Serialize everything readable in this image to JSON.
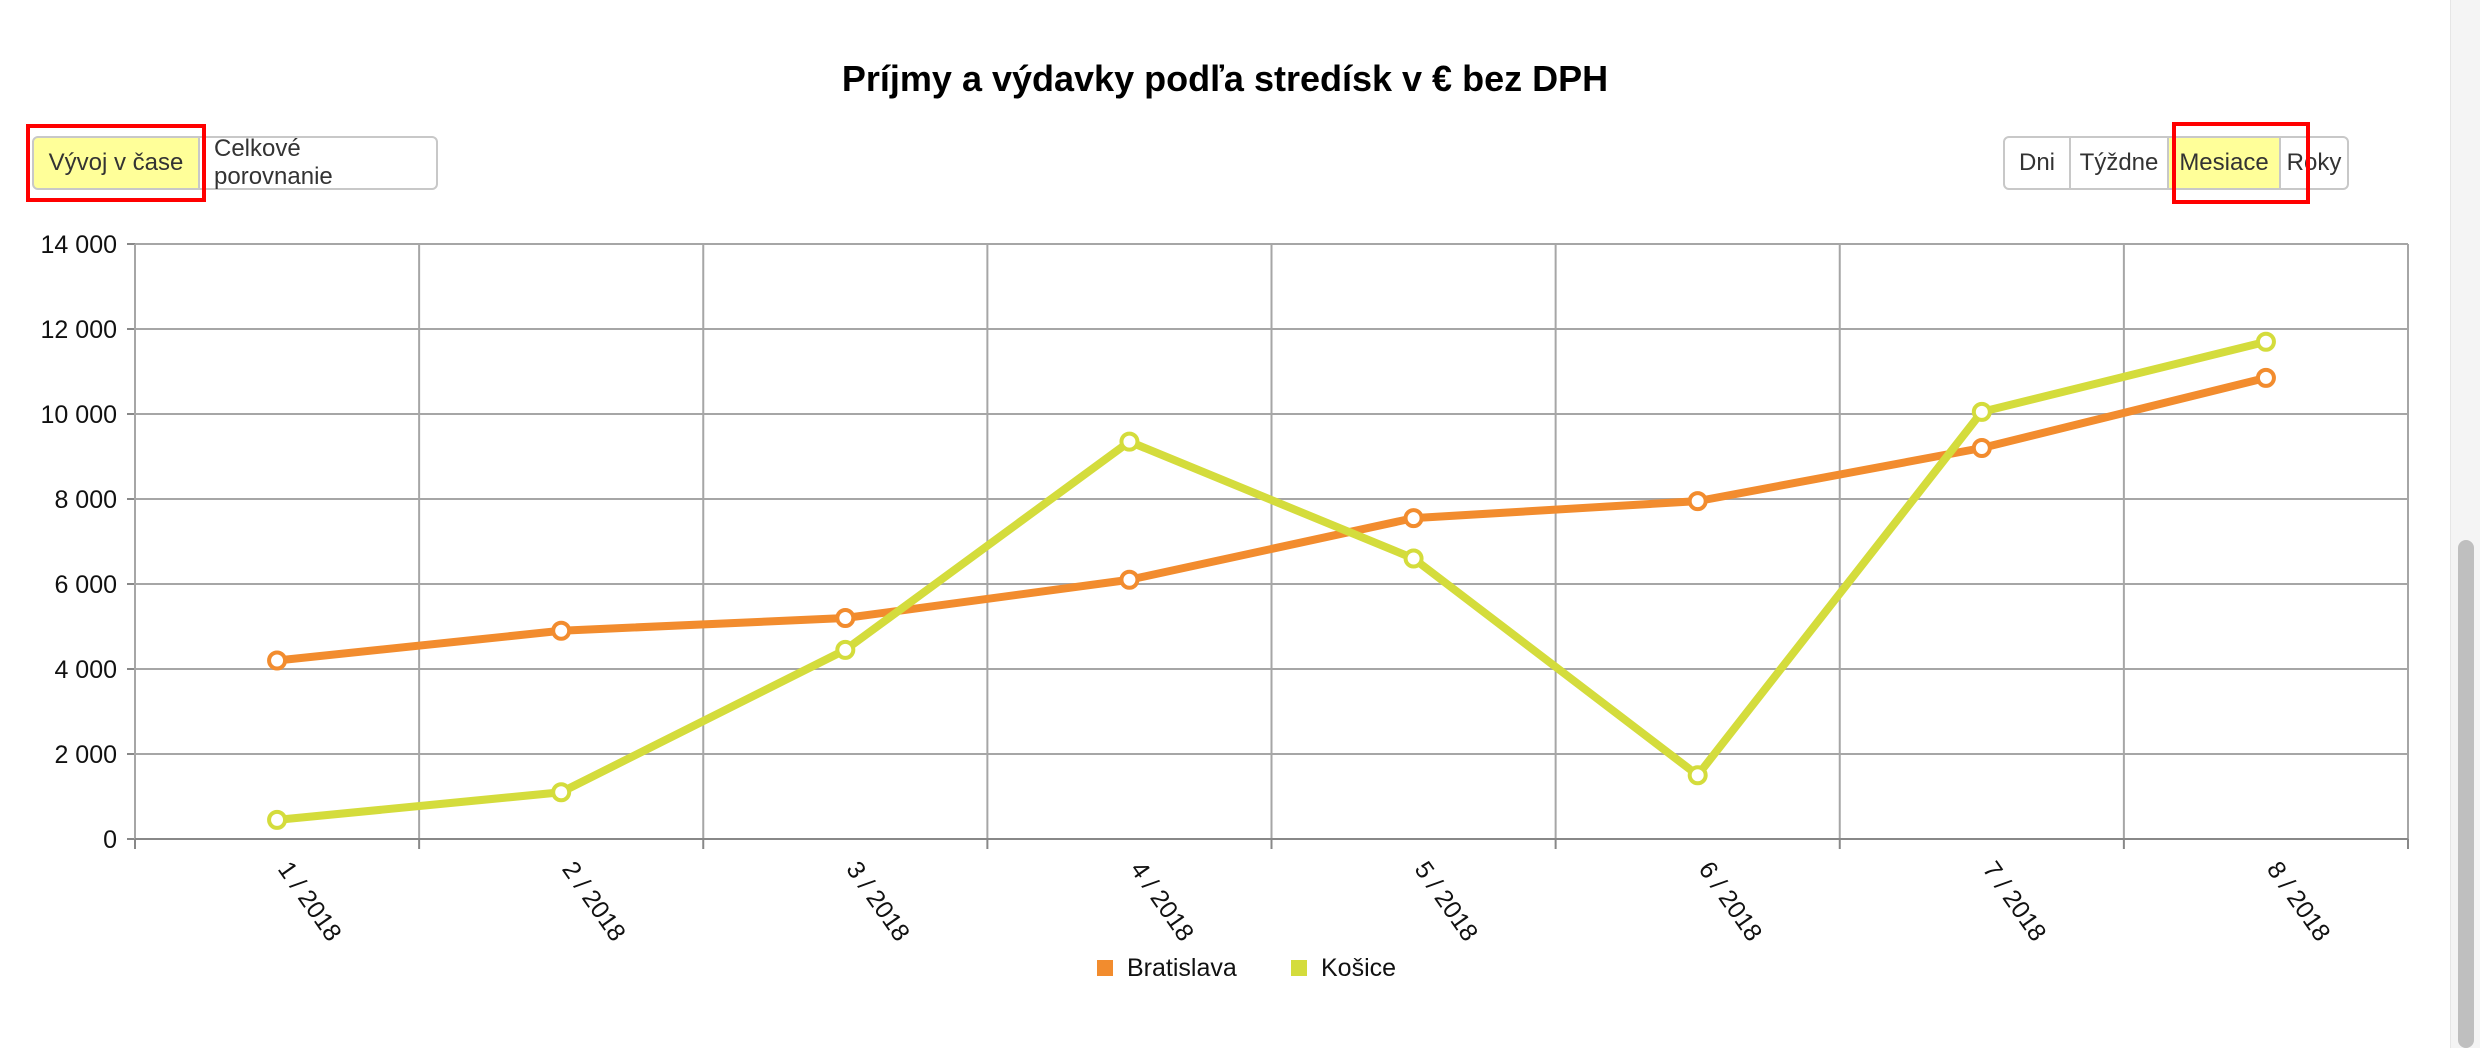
{
  "view_toggle": {
    "buttons": [
      "Vývoj v čase",
      "Celkové porovnanie"
    ],
    "active_index": 0
  },
  "period_toggle": {
    "buttons": [
      "Dni",
      "Týždne",
      "Mesiace",
      "Roky"
    ],
    "active_index": 2
  },
  "colors": {
    "active_button": "#ffff99",
    "highlight": "#ff0000",
    "bratislava": "#f28c2e",
    "kosice": "#d4dc3c"
  },
  "chart_data": {
    "type": "line",
    "title": "Príjmy a výdavky podľa stredísk v € bez DPH",
    "xlabel": "",
    "ylabel": "",
    "categories": [
      "1 / 2018",
      "2 / 2018",
      "3 / 2018",
      "4 / 2018",
      "5 / 2018",
      "6 / 2018",
      "7 / 2018",
      "8 / 2018"
    ],
    "y_ticks": [
      "0",
      "2 000",
      "4 000",
      "6 000",
      "8 000",
      "10 000",
      "12 000",
      "14 000"
    ],
    "ylim": [
      0,
      14000
    ],
    "grid": true,
    "legend_position": "bottom-center",
    "series": [
      {
        "name": "Bratislava",
        "values": [
          4200,
          4900,
          5200,
          6100,
          7550,
          7950,
          9200,
          10850
        ]
      },
      {
        "name": "Košice",
        "values": [
          450,
          1100,
          4450,
          9350,
          6600,
          1500,
          10050,
          11700
        ]
      }
    ]
  }
}
